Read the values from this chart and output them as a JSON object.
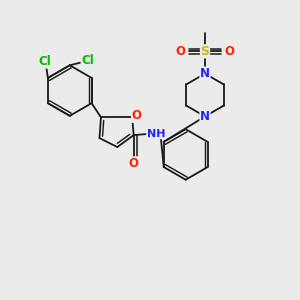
{
  "background_color": "#ebebeb",
  "bond_color": "#1a1a1a",
  "atom_colors": {
    "Cl": "#00bb00",
    "O": "#ff2200",
    "N": "#2222ff",
    "S": "#ccbb00",
    "H": "#555555",
    "C": "#1a1a1a"
  },
  "figsize": [
    3.0,
    3.0
  ],
  "dpi": 100
}
